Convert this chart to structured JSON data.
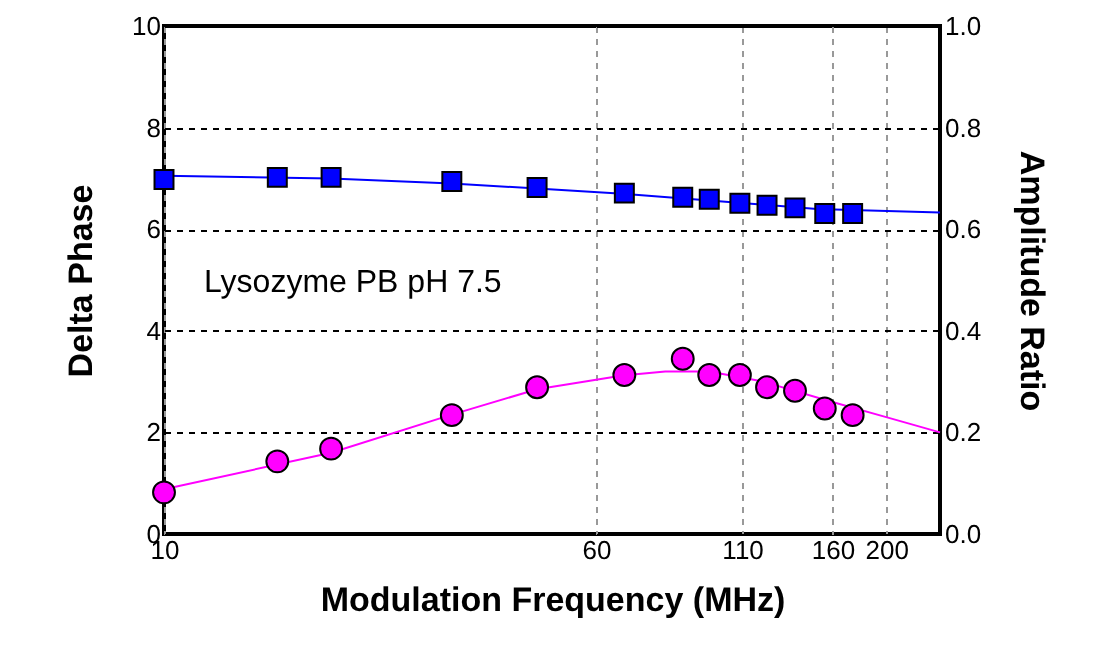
{
  "chart_data": {
    "type": "scatter",
    "xlabel": "Modulation Frequency (MHz)",
    "ylabel": "Delta Phase",
    "y2label": "Amplitude Ratio",
    "log": "x",
    "grid": true,
    "xlim": [
      10,
      250
    ],
    "xticks": [
      10,
      60,
      110,
      160,
      200
    ],
    "ylim": [
      0,
      10
    ],
    "yticks": [
      0,
      2,
      4,
      6,
      8,
      10
    ],
    "y2lim": [
      0,
      1
    ],
    "y2ticks": [
      {
        "value": 0,
        "label": "0.0"
      },
      {
        "value": 0.2,
        "label": "0.2"
      },
      {
        "value": 0.4,
        "label": "0.4"
      },
      {
        "value": 0.6,
        "label": "0.6"
      },
      {
        "value": 0.8,
        "label": "0.8"
      },
      {
        "value": 1,
        "label": "1.0"
      }
    ],
    "annotations": [
      "Lysozyme PB pH 7.5"
    ],
    "series": [
      {
        "type": "line",
        "color": "#ff00ff",
        "marker": "none",
        "line_style": "solid",
        "x": [
          10,
          20,
          33,
          47,
          67,
          80,
          96,
          120,
          160,
          200,
          250
        ],
        "values": [
          0.88,
          1.6,
          2.35,
          2.85,
          3.12,
          3.2,
          3.2,
          3.0,
          2.6,
          2.3,
          2.0
        ]
      },
      {
        "color": "#ff00ff",
        "marker": "circle",
        "x": [
          10,
          16,
          20,
          33,
          47,
          67.5,
          86,
          96,
          109,
          122,
          137,
          155,
          174
        ],
        "values": [
          0.82,
          1.43,
          1.68,
          2.34,
          2.89,
          3.13,
          3.45,
          3.13,
          3.13,
          2.89,
          2.82,
          2.47,
          2.34
        ]
      },
      {
        "type": "line",
        "axis": "y2",
        "color": "#0000ff",
        "marker": "none",
        "line_style": "solid",
        "x": [
          10,
          20,
          33,
          47,
          67,
          100,
          150,
          250
        ],
        "values": [
          0.705,
          0.7,
          0.69,
          0.68,
          0.67,
          0.655,
          0.64,
          0.633
        ]
      },
      {
        "axis": "y2",
        "color": "#0000ff",
        "marker": "square",
        "x": [
          10,
          16,
          20,
          33,
          47,
          67.5,
          86,
          96,
          109,
          122,
          137,
          155,
          174
        ],
        "values": [
          0.698,
          0.702,
          0.702,
          0.694,
          0.682,
          0.671,
          0.663,
          0.659,
          0.651,
          0.647,
          0.642,
          0.631,
          0.631
        ]
      }
    ]
  }
}
